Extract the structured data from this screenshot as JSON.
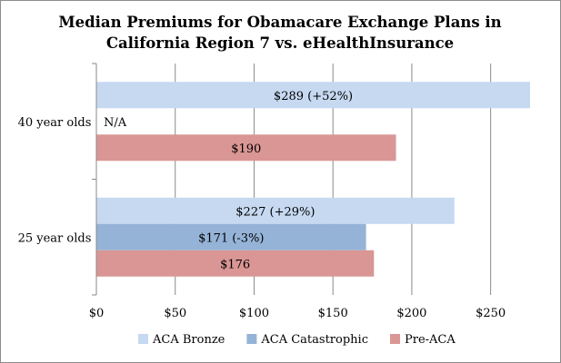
{
  "chart_data": {
    "type": "bar",
    "orientation": "horizontal",
    "title_lines": [
      "Median Premiums for Obamacare Exchange Plans in",
      "California Region 7 vs. eHealthInsurance"
    ],
    "categories": [
      "40 year olds",
      "25 year olds"
    ],
    "series": [
      {
        "name": "ACA Bronze",
        "color": "#c6d9f1",
        "values": [
          289,
          227
        ],
        "labels": [
          "$289 (+52%)",
          "$227 (+29%)"
        ]
      },
      {
        "name": "ACA Catastrophic",
        "color": "#95b3d7",
        "values": [
          null,
          171
        ],
        "labels": [
          "N/A",
          "$171 (-3%)"
        ]
      },
      {
        "name": "Pre-ACA",
        "color": "#d99694",
        "values": [
          190,
          176
        ],
        "labels": [
          "$190",
          "$176"
        ]
      }
    ],
    "xlim": [
      0,
      275
    ],
    "xticks": [
      0,
      50,
      100,
      150,
      200,
      250
    ],
    "xtick_labels": [
      "$0",
      "$50",
      "$100",
      "$150",
      "$200",
      "$250"
    ],
    "grid": true,
    "legend_position": "bottom"
  }
}
